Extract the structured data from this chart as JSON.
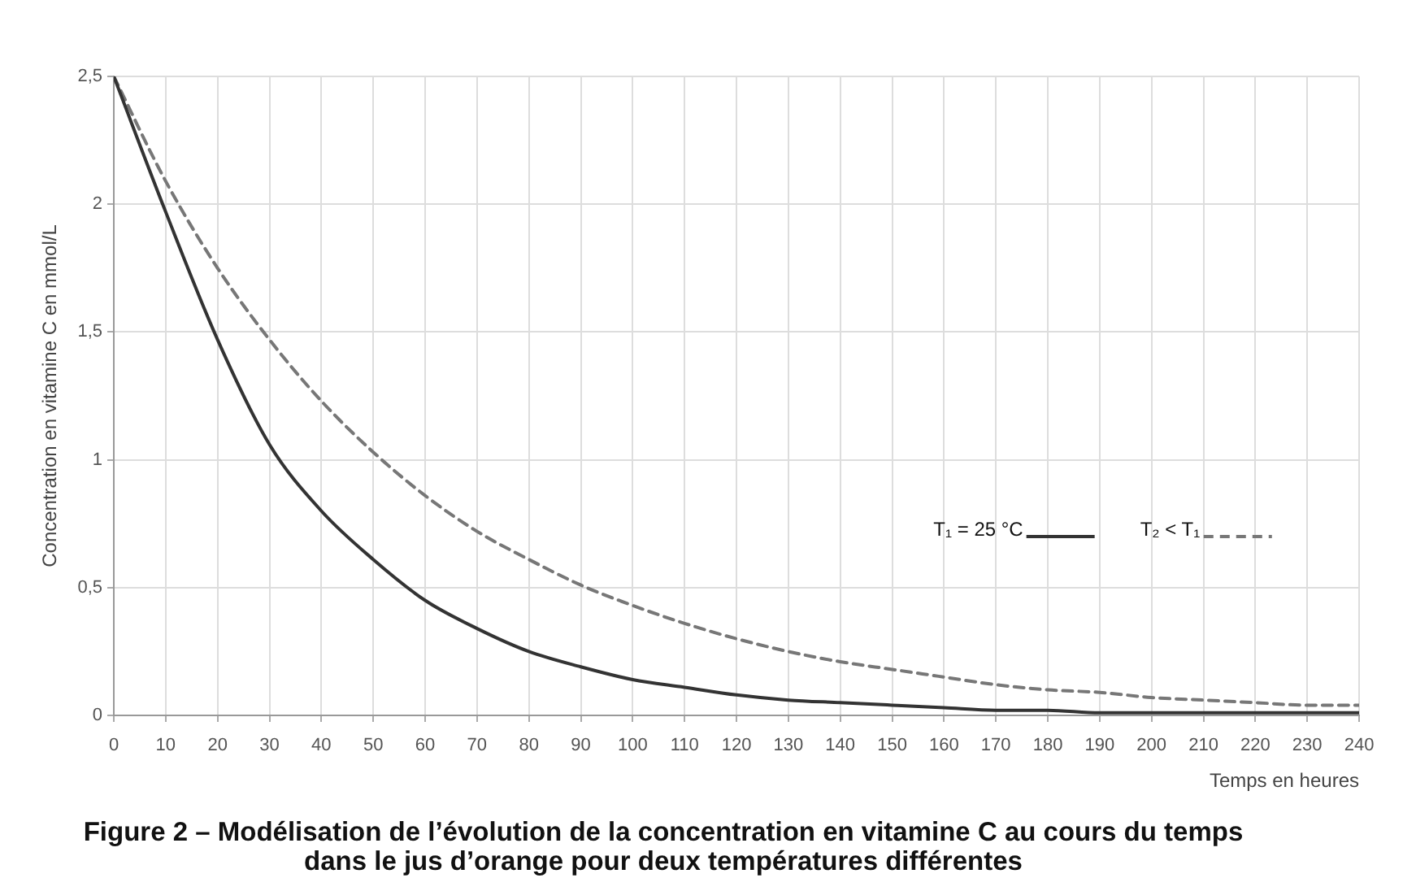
{
  "chart_data": {
    "type": "line",
    "xlabel": "Temps en heures",
    "ylabel": "Concentration en vitamine C en mmol/L",
    "x": [
      0,
      10,
      20,
      30,
      40,
      50,
      60,
      70,
      80,
      90,
      100,
      110,
      120,
      130,
      140,
      150,
      160,
      170,
      180,
      190,
      200,
      210,
      220,
      230,
      240
    ],
    "series": [
      {
        "name": "T₁ = 25 °C",
        "color": "#333333",
        "line_style": "solid",
        "values": [
          2.5,
          1.97,
          1.47,
          1.06,
          0.8,
          0.61,
          0.45,
          0.34,
          0.25,
          0.19,
          0.14,
          0.11,
          0.08,
          0.06,
          0.05,
          0.04,
          0.03,
          0.02,
          0.02,
          0.01,
          0.01,
          0.01,
          0.01,
          0.01,
          0.01
        ]
      },
      {
        "name": "T₂ < T₁",
        "color": "#777777",
        "line_style": "dashed",
        "values": [
          2.5,
          2.09,
          1.75,
          1.47,
          1.23,
          1.03,
          0.86,
          0.72,
          0.61,
          0.51,
          0.43,
          0.36,
          0.3,
          0.25,
          0.21,
          0.18,
          0.15,
          0.12,
          0.1,
          0.09,
          0.07,
          0.06,
          0.05,
          0.04,
          0.04
        ]
      }
    ],
    "xlim": [
      0,
      240
    ],
    "xticks": [
      0,
      10,
      20,
      30,
      40,
      50,
      60,
      70,
      80,
      90,
      100,
      110,
      120,
      130,
      140,
      150,
      160,
      170,
      180,
      190,
      200,
      210,
      220,
      230,
      240
    ],
    "ylim": [
      0,
      2.5
    ],
    "yticks": [
      0,
      {
        "value": 0.5,
        "label": "0,5"
      },
      1,
      {
        "value": 1.5,
        "label": "1,5"
      },
      2,
      {
        "value": 2.5,
        "label": "2,5"
      }
    ],
    "grid": true,
    "legend": "right",
    "marker": "none",
    "annotations": [
      "Figure 2 – Modélisation de l’évolution de la concentration en vitamine C au cours du temps dans le jus d’orange pour deux températures différentes"
    ]
  }
}
